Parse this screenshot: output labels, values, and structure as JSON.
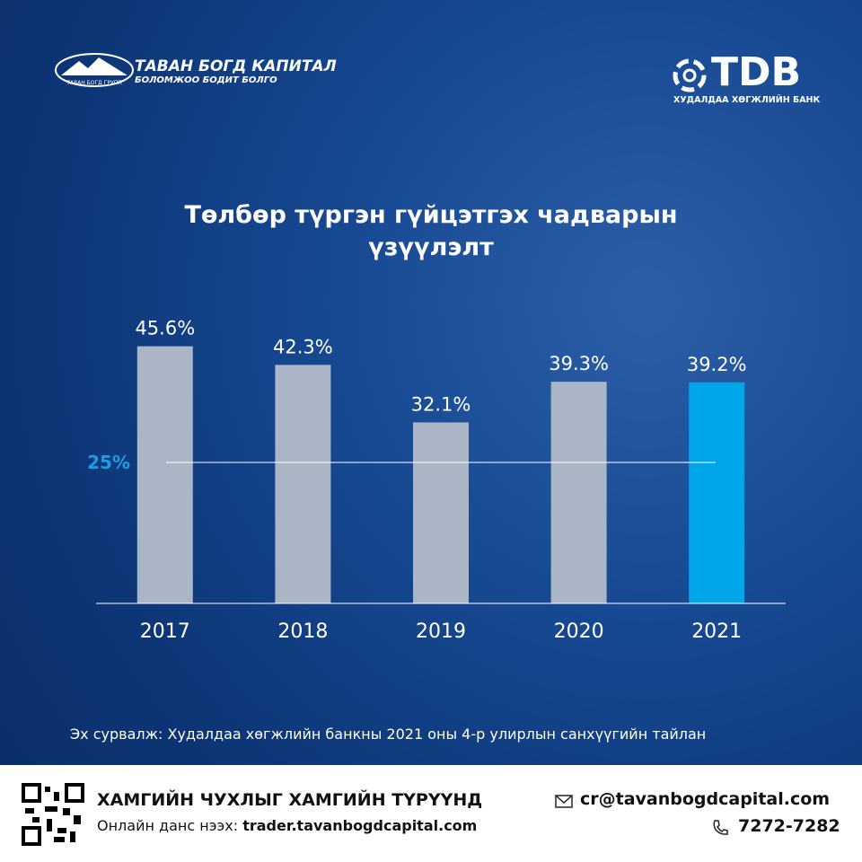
{
  "header": {
    "left_logo_title": "ТАВАН БОГД КАПИТАЛ",
    "left_logo_subtitle": "БОЛОМЖОО БОДИТ БОЛГО",
    "left_logo_emblem": "ТАВАН БОГД ГРУПП",
    "right_logo_title": "TDB",
    "right_logo_subtitle": "ХУДАЛДАА ХӨГЖЛИЙН БАНК"
  },
  "chart_data": {
    "type": "bar",
    "title": "Төлбөр түргэн гүйцэтгэх чадварын үзүүлэлт",
    "categories": [
      "2017",
      "2018",
      "2019",
      "2020",
      "2021"
    ],
    "values": [
      45.6,
      42.3,
      32.1,
      39.3,
      39.2
    ],
    "value_labels": [
      "45.6%",
      "42.3%",
      "32.1%",
      "39.3%",
      "39.2%"
    ],
    "colors": [
      "#aab6c6",
      "#aab6c6",
      "#aab6c6",
      "#aab6c6",
      "#00a6ea"
    ],
    "ylim": [
      0,
      50
    ],
    "reference_line": {
      "value": 25,
      "label": "25%",
      "color": "#1e9be3"
    }
  },
  "source": "Эх сурвалж: Худалдаа хөгжлийн банкны 2021 оны 4-р улирлын санхүүгийн  тайлан",
  "footer": {
    "slogan": "ХАМГИЙН ЧУХЛЫГ ХАМГИЙН ТҮРҮҮНД",
    "account_label": "Онлайн данс нээх:",
    "account_url": "trader.tavanbogdcapital.com",
    "email": "cr@tavanbogdcapital.com",
    "phone": "7272-7282"
  }
}
